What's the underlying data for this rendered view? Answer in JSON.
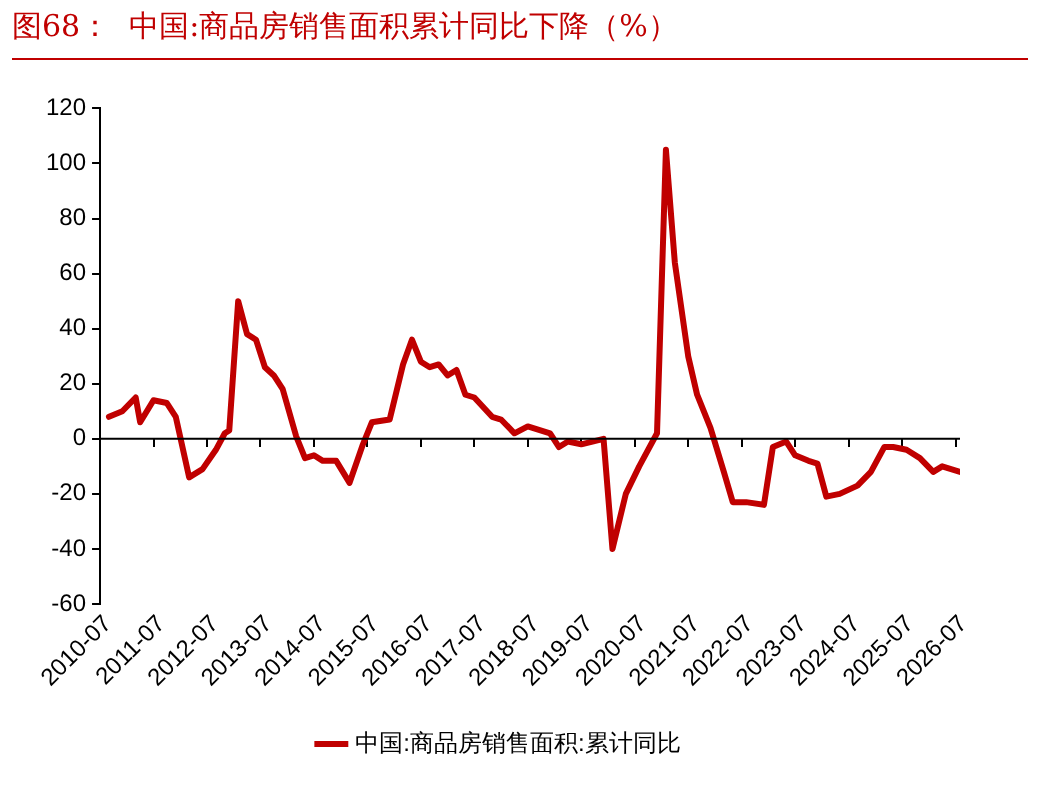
{
  "chart_data": {
    "type": "line",
    "title": "图68：  中国:商品房销售面积累计同比下降（%）",
    "x": [
      "2010-09",
      "2010-12",
      "2011-03",
      "2011-04",
      "2011-07",
      "2011-10",
      "2011-12",
      "2012-03",
      "2012-06",
      "2012-09",
      "2012-11",
      "2012-12",
      "2013-02",
      "2013-04",
      "2013-06",
      "2013-08",
      "2013-10",
      "2013-12",
      "2014-03",
      "2014-05",
      "2014-07",
      "2014-09",
      "2014-12",
      "2015-03",
      "2015-06",
      "2015-08",
      "2015-12",
      "2016-03",
      "2016-05",
      "2016-07",
      "2016-09",
      "2016-11",
      "2017-01",
      "2017-03",
      "2017-05",
      "2017-07",
      "2017-11",
      "2018-01",
      "2018-04",
      "2018-07",
      "2018-12",
      "2019-02",
      "2019-04",
      "2019-07",
      "2019-12",
      "2020-02",
      "2020-05",
      "2020-08",
      "2020-12",
      "2021-02",
      "2021-04",
      "2021-07",
      "2021-09",
      "2021-12",
      "2022-03",
      "2022-05",
      "2022-08",
      "2022-12",
      "2023-02",
      "2023-05",
      "2023-07",
      "2023-10",
      "2023-12",
      "2024-02",
      "2024-05",
      "2024-09",
      "2024-12",
      "2025-03",
      "2025-05",
      "2025-08",
      "2025-11",
      "2026-02",
      "2026-04",
      "2026-08"
    ],
    "series": [
      {
        "name": "中国:商品房销售面积:累计同比",
        "color": "#c00000",
        "values": [
          8,
          10,
          15,
          6,
          14,
          13,
          8,
          -14,
          -11,
          -4,
          2,
          3,
          50,
          38,
          36,
          26,
          23,
          18,
          1,
          -7,
          -6,
          -8,
          -8,
          -16,
          -2,
          6,
          7,
          27,
          36,
          28,
          26,
          27,
          23,
          25,
          16,
          15,
          8,
          7,
          2,
          4.5,
          2,
          -3,
          -1,
          -2,
          0,
          -40,
          -20,
          -10,
          2,
          105,
          64,
          30,
          16,
          4,
          -12,
          -23,
          -23,
          -24,
          -3,
          -1,
          -6,
          -8,
          -9,
          -21,
          -20,
          -17,
          -12,
          -3,
          -3,
          -4,
          -7,
          -12,
          -10,
          -12
        ]
      }
    ],
    "xlim": [
      "2010-07",
      "2026-08"
    ],
    "xticks": [
      "2010-07",
      "2011-07",
      "2012-07",
      "2013-07",
      "2014-07",
      "2015-07",
      "2016-07",
      "2017-07",
      "2018-07",
      "2019-07",
      "2020-07",
      "2021-07",
      "2022-07",
      "2023-07",
      "2024-07",
      "2025-07",
      "2026-07"
    ],
    "ylim": [
      -60,
      120
    ],
    "yticks": [
      -60,
      -40,
      -20,
      0,
      20,
      40,
      60,
      80,
      100,
      120
    ],
    "ref_lines": [
      {
        "axis": "y",
        "value": 0,
        "color": "#000000"
      }
    ],
    "grid": false,
    "legend": "bottom",
    "marker": "none",
    "line_style": "solid"
  }
}
